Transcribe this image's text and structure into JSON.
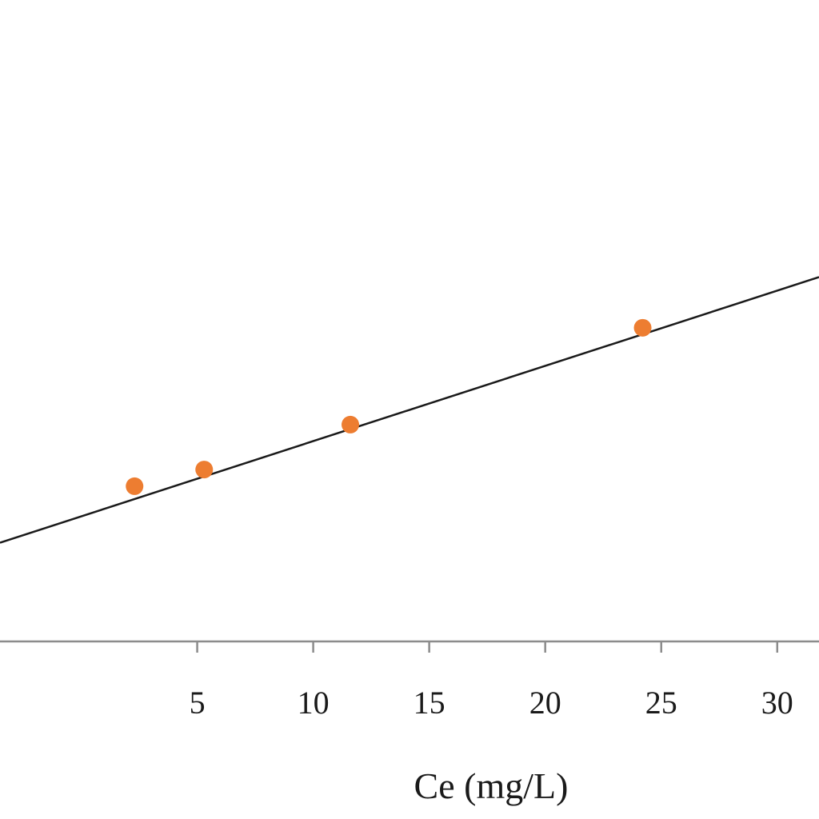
{
  "chart_data": {
    "type": "scatter",
    "title": "",
    "xlabel": "Ce (mg/L)",
    "ylabel": "",
    "xlim": [
      -3.5,
      31.8
    ],
    "ylim": [
      0,
      1
    ],
    "x_ticks": [
      5,
      10,
      15,
      20,
      25,
      30
    ],
    "x_tick_labels": [
      "5",
      "10",
      "15",
      "20",
      "25",
      "30"
    ],
    "grid": false,
    "legend": "none",
    "series": [
      {
        "kind": "points",
        "color": "#ED7D31",
        "points": [
          {
            "x": 2.3,
            "y": 0.242
          },
          {
            "x": 5.3,
            "y": 0.268
          },
          {
            "x": 11.6,
            "y": 0.338
          },
          {
            "x": 24.2,
            "y": 0.489
          }
        ]
      },
      {
        "kind": "trendline",
        "color": "#1a1a1a",
        "points": [
          {
            "x": 0.0,
            "y": 0.195
          },
          {
            "x": 31.8,
            "y": 0.568
          }
        ]
      }
    ]
  }
}
